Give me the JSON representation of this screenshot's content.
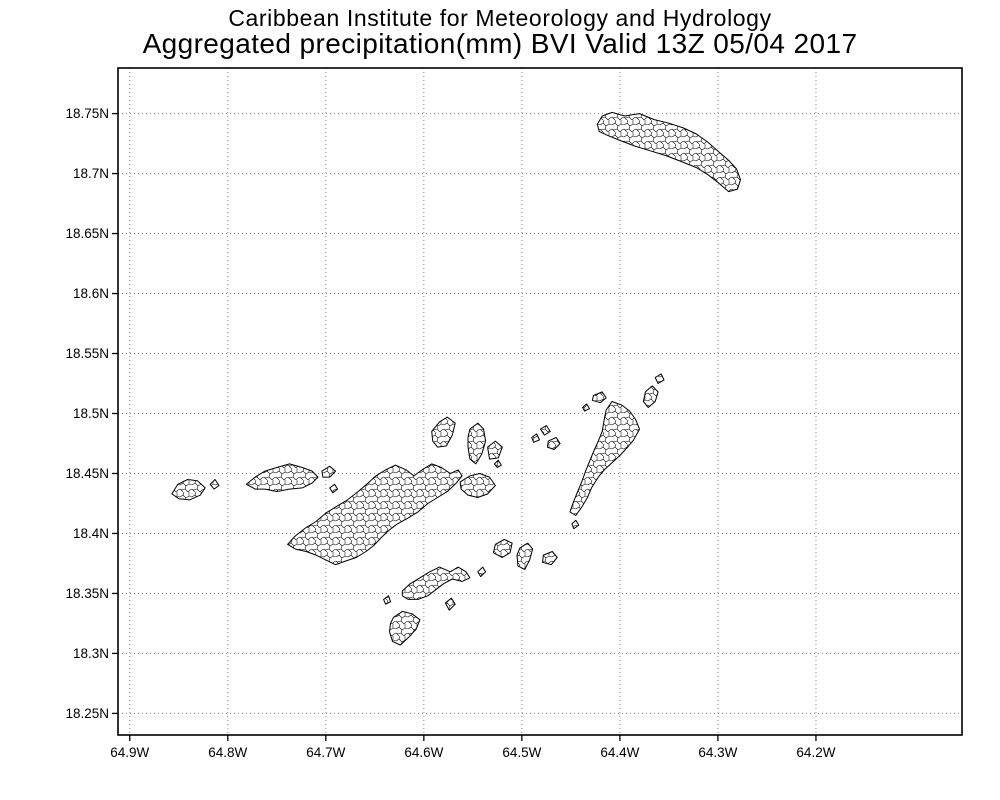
{
  "header": {
    "line1": "Caribbean Institute for Meteorology and Hydrology",
    "line2": "Aggregated precipitation(mm) BVI Valid 13Z 05/04 2017"
  },
  "axes": {
    "y_ticks": [
      "18.75N",
      "18.7N",
      "18.65N",
      "18.6N",
      "18.55N",
      "18.5N",
      "18.45N",
      "18.4N",
      "18.35N",
      "18.3N",
      "18.25N"
    ],
    "x_ticks": [
      "64.9W",
      "64.8W",
      "64.7W",
      "64.6W",
      "64.5W",
      "64.4W",
      "64.3W",
      "64.2W"
    ]
  },
  "colors": {
    "ink": "#000000",
    "grid_dots": "#8a8a8a",
    "background": "#ffffff"
  },
  "map_data": {
    "type": "map",
    "region": "British Virgin Islands",
    "projection": "latlon",
    "grid_style": "dotted",
    "lon_extent_w": [
      64.912,
      64.051
    ],
    "lat_extent_n": [
      18.788,
      18.232
    ],
    "islands": [
      {
        "name": "anegada",
        "points": [
          [
            64.423,
            18.741
          ],
          [
            64.418,
            18.748
          ],
          [
            64.408,
            18.751
          ],
          [
            64.395,
            18.748
          ],
          [
            64.38,
            18.75
          ],
          [
            64.365,
            18.745
          ],
          [
            64.35,
            18.742
          ],
          [
            64.335,
            18.738
          ],
          [
            64.322,
            18.733
          ],
          [
            64.31,
            18.726
          ],
          [
            64.299,
            18.718
          ],
          [
            64.289,
            18.711
          ],
          [
            64.281,
            18.704
          ],
          [
            64.277,
            18.695
          ],
          [
            64.28,
            18.687
          ],
          [
            64.289,
            18.685
          ],
          [
            64.299,
            18.692
          ],
          [
            64.31,
            18.699
          ],
          [
            64.322,
            18.705
          ],
          [
            64.337,
            18.71
          ],
          [
            64.353,
            18.715
          ],
          [
            64.369,
            18.719
          ],
          [
            64.385,
            18.723
          ],
          [
            64.401,
            18.728
          ],
          [
            64.413,
            18.732
          ],
          [
            64.421,
            18.735
          ]
        ]
      },
      {
        "name": "tortola",
        "points": [
          [
            64.739,
            18.391
          ],
          [
            64.731,
            18.398
          ],
          [
            64.72,
            18.405
          ],
          [
            64.71,
            18.41
          ],
          [
            64.7,
            18.417
          ],
          [
            64.69,
            18.422
          ],
          [
            64.678,
            18.428
          ],
          [
            64.667,
            18.435
          ],
          [
            64.657,
            18.442
          ],
          [
            64.649,
            18.448
          ],
          [
            64.639,
            18.453
          ],
          [
            64.629,
            18.457
          ],
          [
            64.618,
            18.453
          ],
          [
            64.61,
            18.448
          ],
          [
            64.602,
            18.453
          ],
          [
            64.592,
            18.458
          ],
          [
            64.582,
            18.455
          ],
          [
            64.573,
            18.45
          ],
          [
            64.565,
            18.453
          ],
          [
            64.561,
            18.448
          ],
          [
            64.567,
            18.442
          ],
          [
            64.576,
            18.435
          ],
          [
            64.586,
            18.43
          ],
          [
            64.596,
            18.425
          ],
          [
            64.606,
            18.418
          ],
          [
            64.616,
            18.413
          ],
          [
            64.627,
            18.408
          ],
          [
            64.635,
            18.403
          ],
          [
            64.643,
            18.397
          ],
          [
            64.651,
            18.39
          ],
          [
            64.659,
            18.385
          ],
          [
            64.669,
            18.38
          ],
          [
            64.68,
            18.377
          ],
          [
            64.69,
            18.374
          ],
          [
            64.7,
            18.378
          ],
          [
            64.71,
            18.382
          ],
          [
            64.72,
            18.385
          ],
          [
            64.731,
            18.387
          ]
        ]
      },
      {
        "name": "jost-van-dyke",
        "points": [
          [
            64.781,
            18.441
          ],
          [
            64.772,
            18.447
          ],
          [
            64.762,
            18.452
          ],
          [
            64.75,
            18.455
          ],
          [
            64.737,
            18.458
          ],
          [
            64.724,
            18.455
          ],
          [
            64.714,
            18.452
          ],
          [
            64.708,
            18.447
          ],
          [
            64.714,
            18.442
          ],
          [
            64.724,
            18.438
          ],
          [
            64.737,
            18.437
          ],
          [
            64.75,
            18.435
          ],
          [
            64.762,
            18.437
          ],
          [
            64.772,
            18.437
          ]
        ]
      },
      {
        "name": "little-jost-van-dyke",
        "points": [
          [
            64.704,
            18.452
          ],
          [
            64.696,
            18.456
          ],
          [
            64.69,
            18.452
          ],
          [
            64.696,
            18.447
          ],
          [
            64.703,
            18.447
          ]
        ]
      },
      {
        "name": "sandy-cay",
        "points": [
          [
            64.696,
            18.438
          ],
          [
            64.691,
            18.441
          ],
          [
            64.688,
            18.437
          ],
          [
            64.693,
            18.434
          ]
        ]
      },
      {
        "name": "great-tobago",
        "points": [
          [
            64.857,
            18.433
          ],
          [
            64.851,
            18.441
          ],
          [
            64.841,
            18.445
          ],
          [
            64.831,
            18.444
          ],
          [
            64.823,
            18.438
          ],
          [
            64.828,
            18.432
          ],
          [
            64.839,
            18.428
          ],
          [
            64.85,
            18.429
          ]
        ]
      },
      {
        "name": "little-tobago",
        "points": [
          [
            64.818,
            18.441
          ],
          [
            64.813,
            18.445
          ],
          [
            64.809,
            18.44
          ],
          [
            64.814,
            18.437
          ]
        ]
      },
      {
        "name": "guana-island",
        "points": [
          [
            64.592,
            18.485
          ],
          [
            64.584,
            18.493
          ],
          [
            64.576,
            18.497
          ],
          [
            64.568,
            18.492
          ],
          [
            64.571,
            18.482
          ],
          [
            64.577,
            18.473
          ],
          [
            64.586,
            18.472
          ],
          [
            64.591,
            18.477
          ]
        ]
      },
      {
        "name": "great-camanoe",
        "points": [
          [
            64.553,
            18.487
          ],
          [
            64.545,
            18.492
          ],
          [
            64.539,
            18.487
          ],
          [
            64.537,
            18.477
          ],
          [
            64.541,
            18.466
          ],
          [
            64.547,
            18.458
          ],
          [
            64.553,
            18.462
          ],
          [
            64.555,
            18.472
          ],
          [
            64.555,
            18.48
          ]
        ]
      },
      {
        "name": "scrub-island",
        "points": [
          [
            64.535,
            18.472
          ],
          [
            64.527,
            18.477
          ],
          [
            64.52,
            18.472
          ],
          [
            64.524,
            18.463
          ],
          [
            64.533,
            18.462
          ]
        ]
      },
      {
        "name": "marina-cay",
        "points": [
          [
            64.528,
            18.458
          ],
          [
            64.524,
            18.461
          ],
          [
            64.521,
            18.457
          ],
          [
            64.525,
            18.455
          ]
        ]
      },
      {
        "name": "beef-island",
        "points": [
          [
            64.563,
            18.443
          ],
          [
            64.553,
            18.448
          ],
          [
            64.543,
            18.45
          ],
          [
            64.533,
            18.447
          ],
          [
            64.527,
            18.44
          ],
          [
            64.535,
            18.433
          ],
          [
            64.545,
            18.43
          ],
          [
            64.555,
            18.432
          ],
          [
            64.562,
            18.437
          ]
        ]
      },
      {
        "name": "virgin-gorda",
        "points": [
          [
            64.408,
            18.51
          ],
          [
            64.398,
            18.507
          ],
          [
            64.39,
            18.502
          ],
          [
            64.384,
            18.495
          ],
          [
            64.38,
            18.487
          ],
          [
            64.386,
            18.478
          ],
          [
            64.392,
            18.472
          ],
          [
            64.4,
            18.465
          ],
          [
            64.408,
            18.459
          ],
          [
            64.416,
            18.453
          ],
          [
            64.422,
            18.447
          ],
          [
            64.429,
            18.438
          ],
          [
            64.433,
            18.43
          ],
          [
            64.439,
            18.422
          ],
          [
            64.445,
            18.415
          ],
          [
            64.451,
            18.418
          ],
          [
            64.447,
            18.427
          ],
          [
            64.443,
            18.435
          ],
          [
            64.439,
            18.443
          ],
          [
            64.435,
            18.452
          ],
          [
            64.431,
            18.46
          ],
          [
            64.427,
            18.468
          ],
          [
            64.422,
            18.477
          ],
          [
            64.418,
            18.485
          ],
          [
            64.416,
            18.495
          ],
          [
            64.414,
            18.503
          ]
        ]
      },
      {
        "name": "fallen-jerusalem",
        "points": [
          [
            64.449,
            18.408
          ],
          [
            64.445,
            18.411
          ],
          [
            64.442,
            18.407
          ],
          [
            64.447,
            18.404
          ]
        ]
      },
      {
        "name": "mosquito-island",
        "points": [
          [
            64.427,
            18.515
          ],
          [
            64.418,
            18.518
          ],
          [
            64.414,
            18.513
          ],
          [
            64.42,
            18.509
          ],
          [
            64.428,
            18.511
          ]
        ]
      },
      {
        "name": "prickly-pear",
        "points": [
          [
            64.374,
            18.518
          ],
          [
            64.367,
            18.523
          ],
          [
            64.361,
            18.518
          ],
          [
            64.364,
            18.51
          ],
          [
            64.371,
            18.505
          ],
          [
            64.376,
            18.51
          ]
        ]
      },
      {
        "name": "necker-island",
        "points": [
          [
            64.364,
            18.53
          ],
          [
            64.358,
            18.533
          ],
          [
            64.355,
            18.528
          ],
          [
            64.361,
            18.525
          ]
        ]
      },
      {
        "name": "seal-dogs",
        "points": [
          [
            64.438,
            18.505
          ],
          [
            64.434,
            18.508
          ],
          [
            64.431,
            18.504
          ],
          [
            64.436,
            18.502
          ]
        ]
      },
      {
        "name": "great-dog",
        "points": [
          [
            64.473,
            18.477
          ],
          [
            64.465,
            18.48
          ],
          [
            64.461,
            18.475
          ],
          [
            64.467,
            18.47
          ],
          [
            64.474,
            18.472
          ]
        ]
      },
      {
        "name": "george-dog",
        "points": [
          [
            64.481,
            18.487
          ],
          [
            64.475,
            18.49
          ],
          [
            64.471,
            18.485
          ],
          [
            64.477,
            18.482
          ]
        ]
      },
      {
        "name": "west-dog",
        "points": [
          [
            64.49,
            18.48
          ],
          [
            64.485,
            18.483
          ],
          [
            64.482,
            18.478
          ],
          [
            64.488,
            18.476
          ]
        ]
      },
      {
        "name": "cooper-island",
        "points": [
          [
            64.502,
            18.388
          ],
          [
            64.494,
            18.392
          ],
          [
            64.489,
            18.387
          ],
          [
            64.492,
            18.378
          ],
          [
            64.497,
            18.37
          ],
          [
            64.504,
            18.373
          ],
          [
            64.505,
            18.382
          ]
        ]
      },
      {
        "name": "salt-island",
        "points": [
          [
            64.527,
            18.391
          ],
          [
            64.518,
            18.395
          ],
          [
            64.51,
            18.392
          ],
          [
            64.512,
            18.384
          ],
          [
            64.52,
            18.38
          ],
          [
            64.529,
            18.384
          ]
        ]
      },
      {
        "name": "ginger-island",
        "points": [
          [
            64.478,
            18.382
          ],
          [
            64.469,
            18.385
          ],
          [
            64.464,
            18.38
          ],
          [
            64.47,
            18.374
          ],
          [
            64.479,
            18.376
          ]
        ]
      },
      {
        "name": "dead-chest",
        "points": [
          [
            64.545,
            18.368
          ],
          [
            64.54,
            18.372
          ],
          [
            64.537,
            18.368
          ],
          [
            64.542,
            18.364
          ]
        ]
      },
      {
        "name": "peter-island",
        "points": [
          [
            64.622,
            18.352
          ],
          [
            64.614,
            18.358
          ],
          [
            64.604,
            18.363
          ],
          [
            64.594,
            18.368
          ],
          [
            64.584,
            18.372
          ],
          [
            64.573,
            18.368
          ],
          [
            64.565,
            18.372
          ],
          [
            64.557,
            18.368
          ],
          [
            64.553,
            18.363
          ],
          [
            64.561,
            18.36
          ],
          [
            64.571,
            18.362
          ],
          [
            64.58,
            18.358
          ],
          [
            64.588,
            18.353
          ],
          [
            64.596,
            18.348
          ],
          [
            64.606,
            18.345
          ],
          [
            64.616,
            18.345
          ],
          [
            64.622,
            18.348
          ]
        ]
      },
      {
        "name": "key-cay",
        "points": [
          [
            64.578,
            18.342
          ],
          [
            64.572,
            18.346
          ],
          [
            64.568,
            18.341
          ],
          [
            64.574,
            18.336
          ]
        ]
      },
      {
        "name": "pelican-island",
        "points": [
          [
            64.641,
            18.345
          ],
          [
            64.636,
            18.348
          ],
          [
            64.634,
            18.343
          ],
          [
            64.639,
            18.341
          ]
        ]
      },
      {
        "name": "norman-island",
        "points": [
          [
            64.631,
            18.33
          ],
          [
            64.622,
            18.335
          ],
          [
            64.612,
            18.333
          ],
          [
            64.604,
            18.328
          ],
          [
            64.608,
            18.32
          ],
          [
            64.616,
            18.313
          ],
          [
            64.624,
            18.307
          ],
          [
            64.632,
            18.31
          ],
          [
            64.635,
            18.318
          ],
          [
            64.634,
            18.325
          ]
        ]
      }
    ]
  }
}
